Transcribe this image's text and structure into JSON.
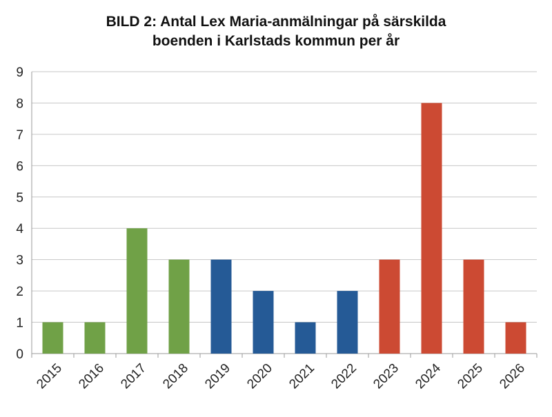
{
  "chart_data": {
    "type": "bar",
    "title_lines": [
      "BILD 2: Antal Lex Maria-anmälningar på särskilda",
      "boenden i Karlstads kommun per år"
    ],
    "categories": [
      "2015",
      "2016",
      "2017",
      "2018",
      "2019",
      "2020",
      "2021",
      "2022",
      "2023",
      "2024",
      "2025",
      "2026"
    ],
    "values": [
      1,
      1,
      4,
      3,
      3,
      2,
      1,
      2,
      3,
      8,
      3,
      1
    ],
    "bar_colors": [
      "#70a147",
      "#70a147",
      "#70a147",
      "#70a147",
      "#255a96",
      "#255a96",
      "#255a96",
      "#255a96",
      "#cc4a33",
      "#cc4a33",
      "#cc4a33",
      "#cc4a33"
    ],
    "ylim": [
      0,
      9
    ],
    "yticks": [
      "0",
      "1",
      "2",
      "3",
      "4",
      "5",
      "6",
      "7",
      "8",
      "9"
    ],
    "grid": true,
    "legend": "none"
  }
}
